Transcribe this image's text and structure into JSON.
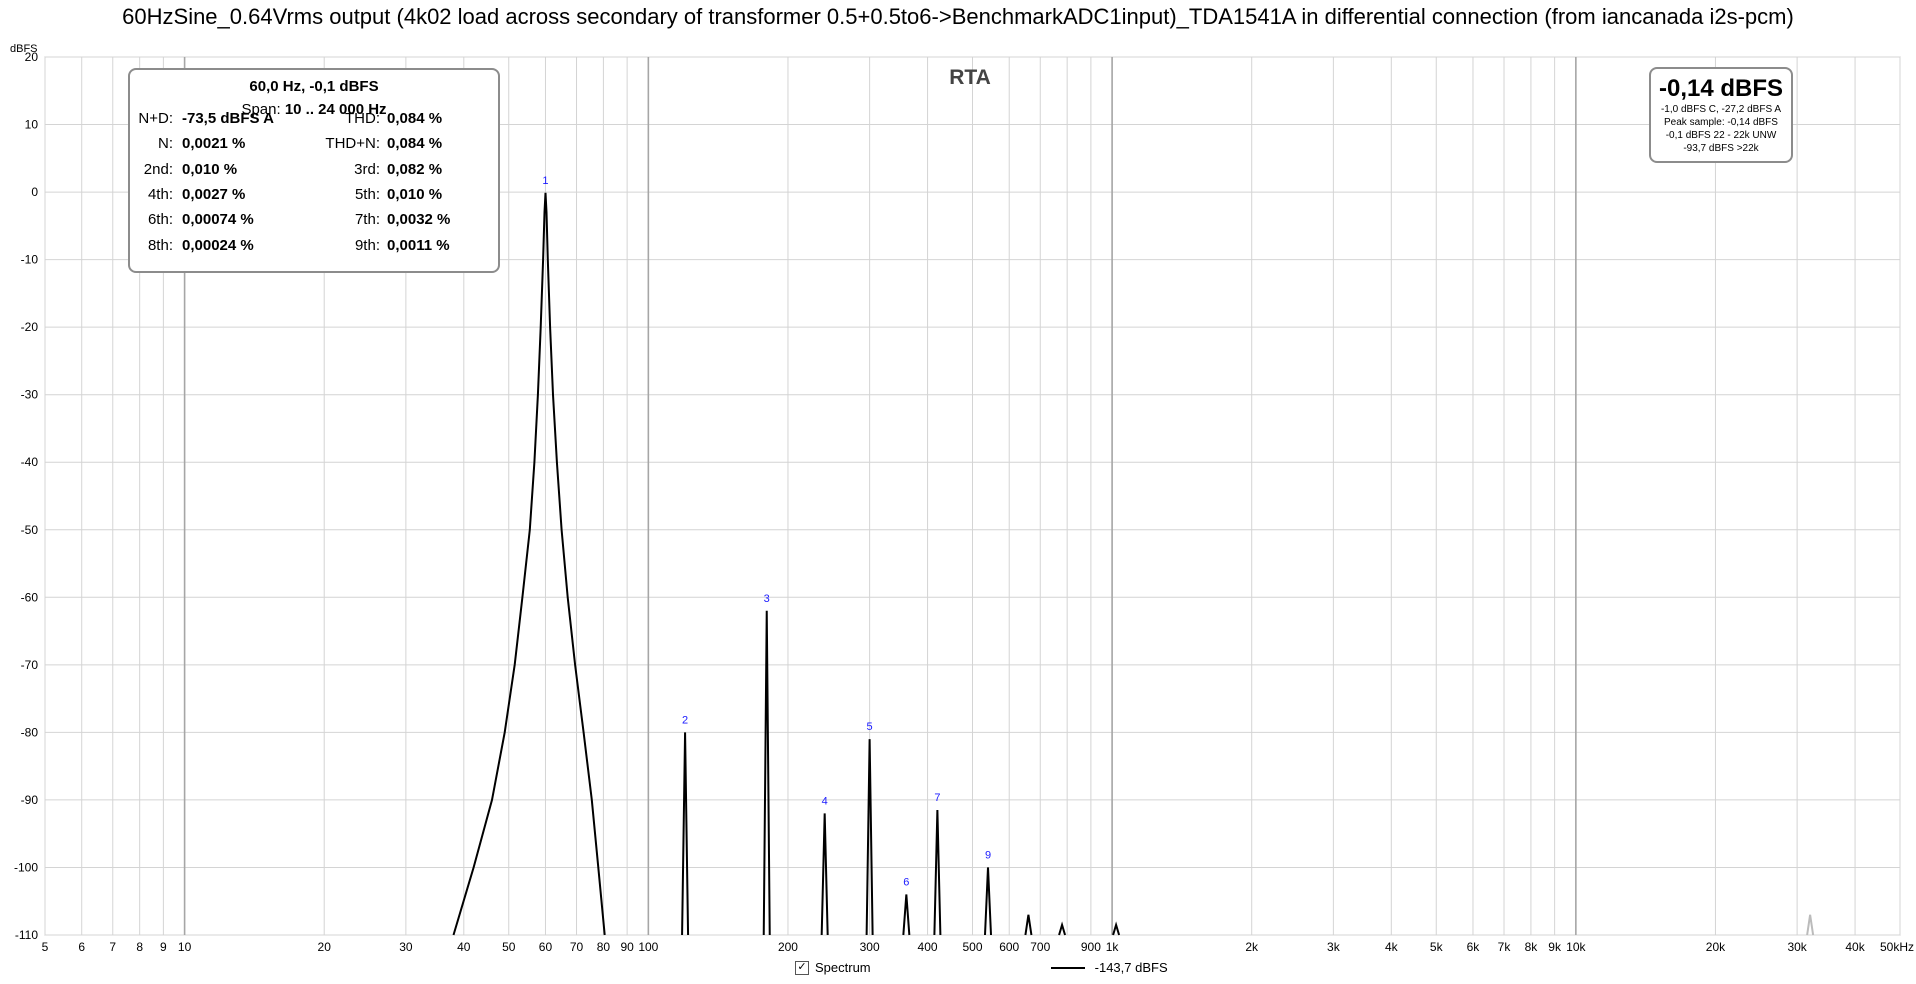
{
  "window": {
    "title": "60HzSine_0.64Vrms output (4k02 load across secondary of transformer 0.5+0.5to6->BenchmarkADC1input)_TDA1541A in differential connection (from iancanada i2s-pcm)"
  },
  "chart_data": {
    "type": "line",
    "title": "60HzSine_0.64Vrms output (4k02 load across secondary of transformer 0.5+0.5to6->BenchmarkADC1input)_TDA1541A in differential connection (from iancanada i2s-pcm)",
    "panel_label": "RTA",
    "ylabel": "dBFS",
    "xlabel": "",
    "x_unit_label": "50kHz",
    "x_scale": "log",
    "xlim": [
      5,
      50000
    ],
    "ylim": [
      -110,
      20
    ],
    "grid": true,
    "y_ticks": [
      20,
      10,
      0,
      -10,
      -20,
      -30,
      -40,
      -50,
      -60,
      -70,
      -80,
      -90,
      -100,
      -110
    ],
    "x_ticks": [
      {
        "v": 5,
        "label": "5"
      },
      {
        "v": 6,
        "label": "6"
      },
      {
        "v": 7,
        "label": "7"
      },
      {
        "v": 8,
        "label": "8"
      },
      {
        "v": 9,
        "label": "9"
      },
      {
        "v": 10,
        "label": "10"
      },
      {
        "v": 20,
        "label": "20"
      },
      {
        "v": 30,
        "label": "30"
      },
      {
        "v": 40,
        "label": "40"
      },
      {
        "v": 50,
        "label": "50"
      },
      {
        "v": 60,
        "label": "60"
      },
      {
        "v": 70,
        "label": "70"
      },
      {
        "v": 80,
        "label": "80"
      },
      {
        "v": 90,
        "label": "90"
      },
      {
        "v": 100,
        "label": "100"
      },
      {
        "v": 200,
        "label": "200"
      },
      {
        "v": 300,
        "label": "300"
      },
      {
        "v": 400,
        "label": "400"
      },
      {
        "v": 500,
        "label": "500"
      },
      {
        "v": 600,
        "label": "600"
      },
      {
        "v": 700,
        "label": "700"
      },
      {
        "v": 900,
        "label": "900"
      },
      {
        "v": 1000,
        "label": "1k"
      },
      {
        "v": 2000,
        "label": "2k"
      },
      {
        "v": 3000,
        "label": "3k"
      },
      {
        "v": 4000,
        "label": "4k"
      },
      {
        "v": 5000,
        "label": "5k"
      },
      {
        "v": 6000,
        "label": "6k"
      },
      {
        "v": 7000,
        "label": "7k"
      },
      {
        "v": 8000,
        "label": "8k"
      },
      {
        "v": 9000,
        "label": "9k"
      },
      {
        "v": 10000,
        "label": "10k"
      },
      {
        "v": 20000,
        "label": "20k"
      },
      {
        "v": 30000,
        "label": "30k"
      },
      {
        "v": 40000,
        "label": "40k"
      }
    ],
    "fundamental_curve": [
      [
        38,
        -110
      ],
      [
        42,
        -100
      ],
      [
        46,
        -90
      ],
      [
        49,
        -80
      ],
      [
        51.5,
        -70
      ],
      [
        53.5,
        -60
      ],
      [
        55.5,
        -50
      ],
      [
        56.8,
        -40
      ],
      [
        57.8,
        -30
      ],
      [
        58.6,
        -20
      ],
      [
        59.3,
        -10
      ],
      [
        59.7,
        -3
      ],
      [
        60,
        -0.1
      ],
      [
        60.3,
        -3
      ],
      [
        60.7,
        -10
      ],
      [
        61.4,
        -20
      ],
      [
        62.3,
        -30
      ],
      [
        63.5,
        -40
      ],
      [
        65,
        -50
      ],
      [
        67,
        -60
      ],
      [
        69.5,
        -70
      ],
      [
        72.5,
        -80
      ],
      [
        75.5,
        -90
      ],
      [
        78,
        -100
      ],
      [
        80.5,
        -110
      ]
    ],
    "harmonics": [
      {
        "label": "2",
        "x": 120,
        "y": -80
      },
      {
        "label": "3",
        "x": 180,
        "y": -62
      },
      {
        "label": "4",
        "x": 240,
        "y": -92
      },
      {
        "label": "5",
        "x": 300,
        "y": -81
      },
      {
        "label": "6",
        "x": 360,
        "y": -104
      },
      {
        "label": "7",
        "x": 420,
        "y": -91.5
      },
      {
        "label": "9",
        "x": 540,
        "y": -100
      },
      {
        "label": "",
        "x": 660,
        "y": -107
      },
      {
        "label": "",
        "x": 780,
        "y": -108.5
      },
      {
        "label": "",
        "x": 1020,
        "y": -108.5
      },
      {
        "label": "",
        "x": 32000,
        "y": -107
      }
    ],
    "fundamental_marker": {
      "label": "1",
      "x": 60,
      "y": 0
    }
  },
  "info_box": {
    "header": "60,0 Hz, -0,1 dBFS",
    "span_label": "Span:",
    "span_value": "10 .. 24 000 Hz",
    "rows": [
      {
        "l_label": "N+D:",
        "l_value": "-73,5 dBFS A",
        "r_label": "THD:",
        "r_value": "0,084 %"
      },
      {
        "l_label": "N:",
        "l_value": "0,0021 %",
        "r_label": "THD+N:",
        "r_value": "0,084 %"
      },
      {
        "l_label": "2nd:",
        "l_value": "0,010 %",
        "r_label": "3rd:",
        "r_value": "0,082 %"
      },
      {
        "l_label": "4th:",
        "l_value": "0,0027 %",
        "r_label": "5th:",
        "r_value": "0,010 %"
      },
      {
        "l_label": "6th:",
        "l_value": "0,00074 %",
        "r_label": "7th:",
        "r_value": "0,0032 %"
      },
      {
        "l_label": "8th:",
        "l_value": "0,00024 %",
        "r_label": "9th:",
        "r_value": "0,0011 %"
      }
    ]
  },
  "level_box": {
    "main": "-0,14 dBFS",
    "line1": "-1,0 dBFS C, -27,2 dBFS A",
    "line2": "Peak sample: -0,14 dBFS",
    "line3": "-0,1 dBFS 22 - 22k UNW",
    "line4": "-93,7 dBFS >22k"
  },
  "legend": {
    "checkbox_mark": "✓",
    "series_name": "Spectrum",
    "value_label": "-143,7 dBFS"
  }
}
